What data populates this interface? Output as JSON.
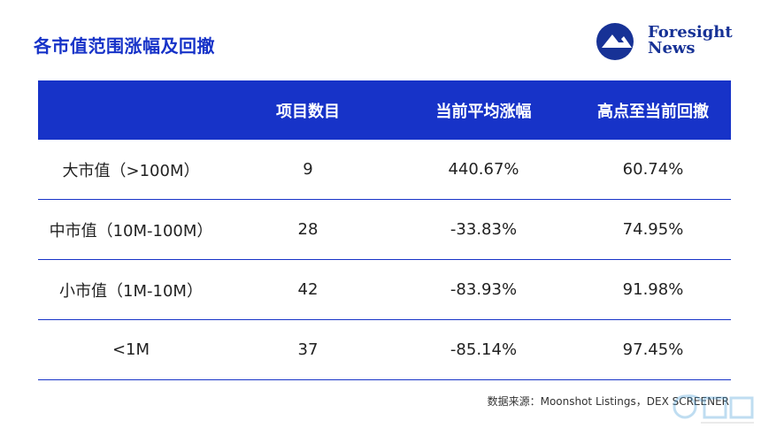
{
  "title": "各市值范围涨幅及回撤",
  "logo": {
    "line1": "Foresight",
    "line2": "News",
    "icon": "foresight-logo-icon",
    "color": "#173296"
  },
  "accent_color": "#1733c8",
  "chart_data": {
    "type": "table",
    "columns": [
      "",
      "项目数目",
      "当前平均涨幅",
      "高点至当前回撤"
    ],
    "rows": [
      [
        "大市值（>100M）",
        "9",
        "440.67%",
        "60.74%"
      ],
      [
        "中市值（10M-100M）",
        "28",
        "-33.83%",
        "74.95%"
      ],
      [
        "小市值（1M-10M）",
        "42",
        "-83.93%",
        "91.98%"
      ],
      [
        "<1M",
        "37",
        "-85.14%",
        "97.45%"
      ]
    ]
  },
  "source": "数据来源：Moonshot Listings，DEX SCREENER"
}
